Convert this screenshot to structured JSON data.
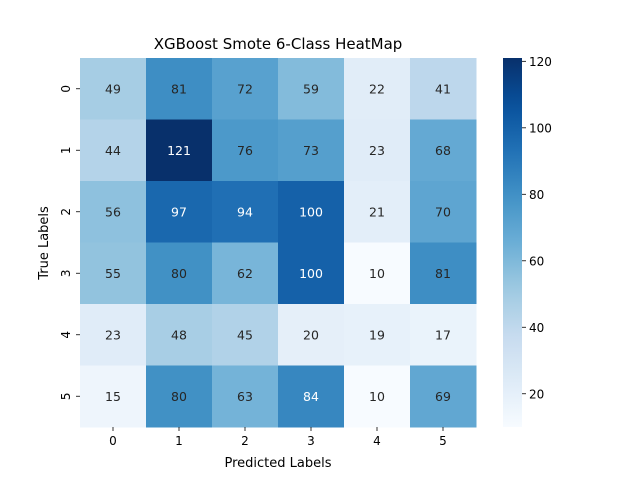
{
  "chart_data": {
    "type": "heatmap",
    "title": "XGBoost Smote 6-Class HeatMap",
    "xlabel": "Predicted Labels",
    "ylabel": "True Labels",
    "x_categories": [
      "0",
      "1",
      "2",
      "3",
      "4",
      "5"
    ],
    "y_categories": [
      "0",
      "1",
      "2",
      "3",
      "4",
      "5"
    ],
    "values": [
      [
        49,
        81,
        72,
        59,
        22,
        41
      ],
      [
        44,
        121,
        76,
        73,
        23,
        68
      ],
      [
        56,
        97,
        94,
        100,
        21,
        70
      ],
      [
        55,
        80,
        62,
        100,
        10,
        81
      ],
      [
        23,
        48,
        45,
        20,
        19,
        17
      ],
      [
        15,
        80,
        63,
        84,
        10,
        69
      ]
    ],
    "colorbar": {
      "min": 10,
      "max": 121,
      "ticks": [
        20,
        40,
        60,
        80,
        100,
        120
      ],
      "colormap": "Blues"
    }
  }
}
